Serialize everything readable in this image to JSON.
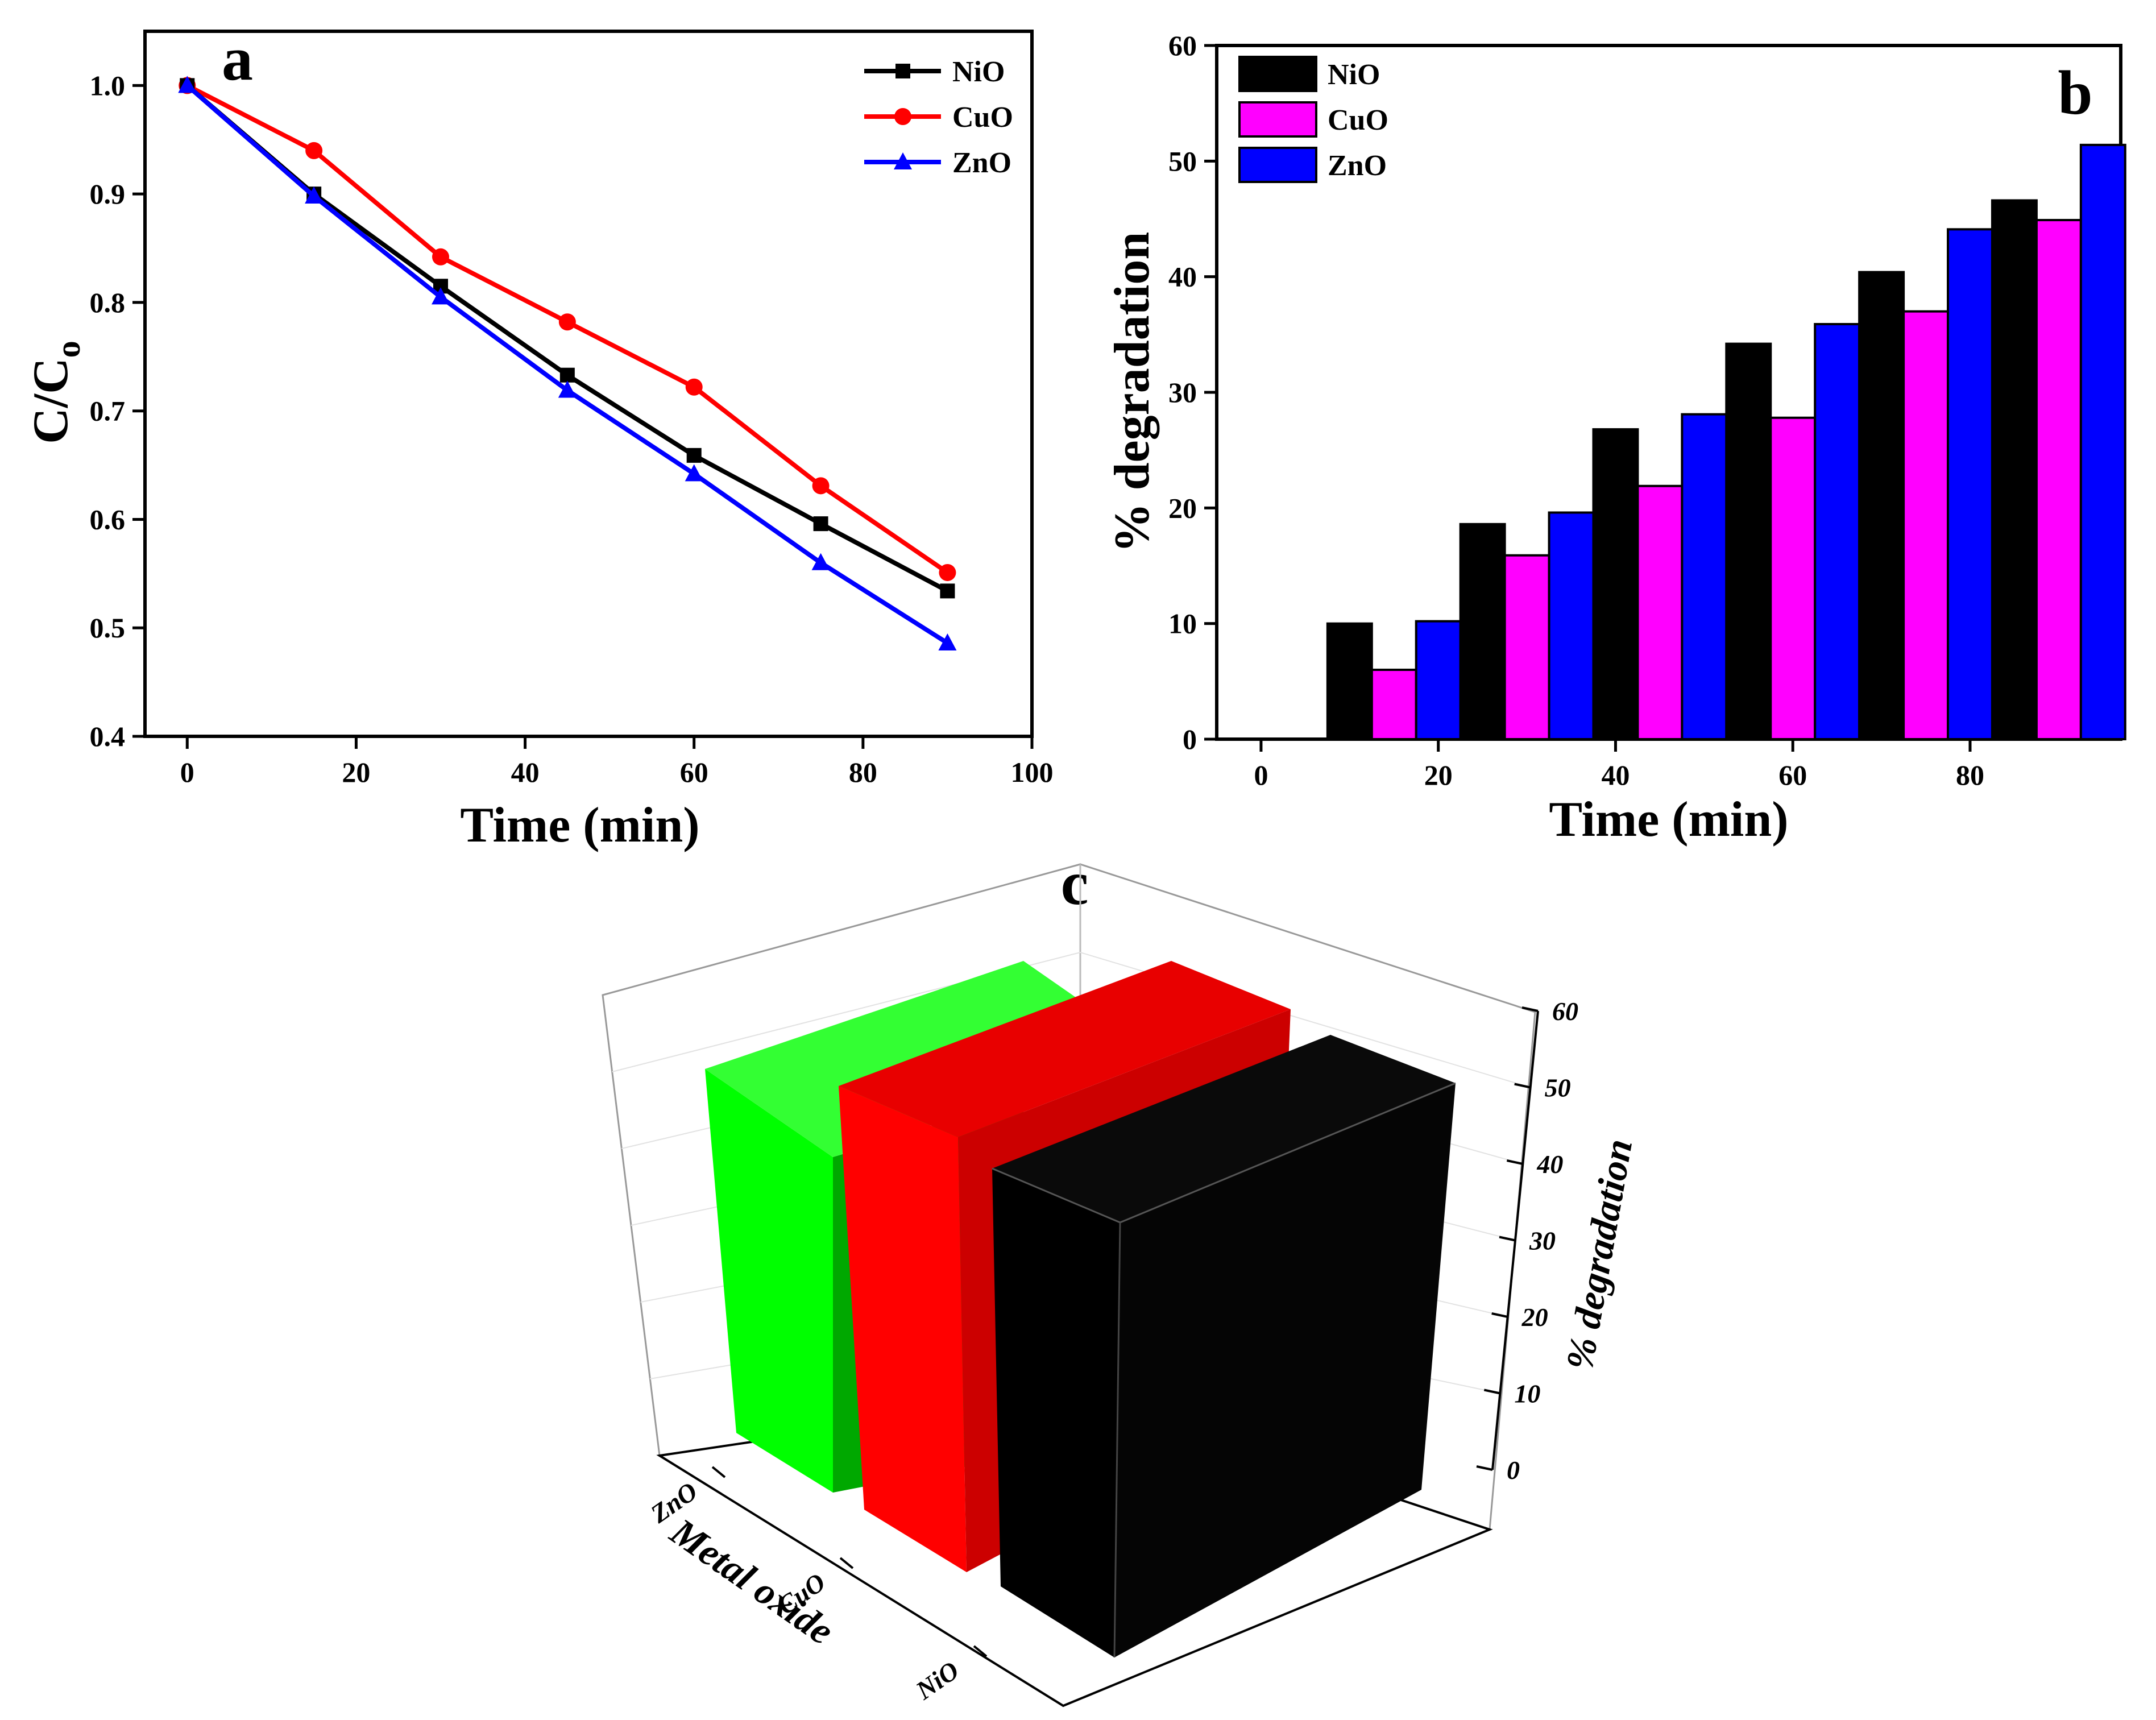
{
  "chart_data": [
    {
      "panel": "a",
      "type": "line",
      "x": [
        0,
        15,
        30,
        45,
        60,
        75,
        90
      ],
      "series": [
        {
          "name": "NiO",
          "color": "#000000",
          "marker": "square",
          "values": [
            1.0,
            0.9,
            0.815,
            0.733,
            0.659,
            0.596,
            0.534
          ]
        },
        {
          "name": "CuO",
          "color": "#ff0000",
          "marker": "circle",
          "values": [
            1.0,
            0.94,
            0.842,
            0.782,
            0.722,
            0.631,
            0.551
          ]
        },
        {
          "name": "ZnO",
          "color": "#0000ff",
          "marker": "triangle",
          "values": [
            1.0,
            0.898,
            0.805,
            0.719,
            0.642,
            0.56,
            0.486
          ]
        }
      ],
      "xlabel": "Time (min)",
      "ylabel": "C/C",
      "ylabel_sub": "o",
      "xlim": [
        -5,
        100
      ],
      "ylim": [
        0.4,
        1.05
      ],
      "xticks": [
        "0",
        "20",
        "40",
        "60",
        "80",
        "100"
      ],
      "yticks": [
        "0.4",
        "0.5",
        "0.6",
        "0.7",
        "0.8",
        "0.9",
        "1.0"
      ],
      "legend_position": "top-right"
    },
    {
      "panel": "b",
      "type": "bar",
      "x": [
        0,
        15,
        30,
        45,
        60,
        75,
        90
      ],
      "series": [
        {
          "name": "NiO",
          "color": "#000000",
          "values": [
            0,
            10,
            18.6,
            26.8,
            34.2,
            40.4,
            46.6
          ]
        },
        {
          "name": "CuO",
          "color": "#ff00ff",
          "values": [
            0,
            6,
            15.9,
            21.9,
            27.8,
            37,
            44.9
          ]
        },
        {
          "name": "ZnO",
          "color": "#0000ff",
          "values": [
            0,
            10.2,
            19.6,
            28.1,
            35.9,
            44.1,
            51.4
          ]
        }
      ],
      "xlabel": "Time (min)",
      "ylabel": "% degradation",
      "xlim": [
        -5,
        97
      ],
      "ylim": [
        0,
        60
      ],
      "xticks": [
        "0",
        "20",
        "40",
        "60",
        "80"
      ],
      "yticks": [
        "0",
        "10",
        "20",
        "30",
        "40",
        "50",
        "60"
      ],
      "legend_position": "top-left"
    },
    {
      "panel": "c",
      "type": "bar",
      "categories": [
        "ZnO",
        "CuO",
        "NiO"
      ],
      "values": [
        51.4,
        44.9,
        46.6
      ],
      "colors": [
        "#00ff00",
        "#ff0000",
        "#000000"
      ],
      "xlabel": "Metal oxide",
      "zlabel": "% degradation",
      "zlim": [
        0,
        60
      ],
      "zticks": [
        "0",
        "10",
        "20",
        "30",
        "40",
        "50",
        "60"
      ]
    }
  ]
}
